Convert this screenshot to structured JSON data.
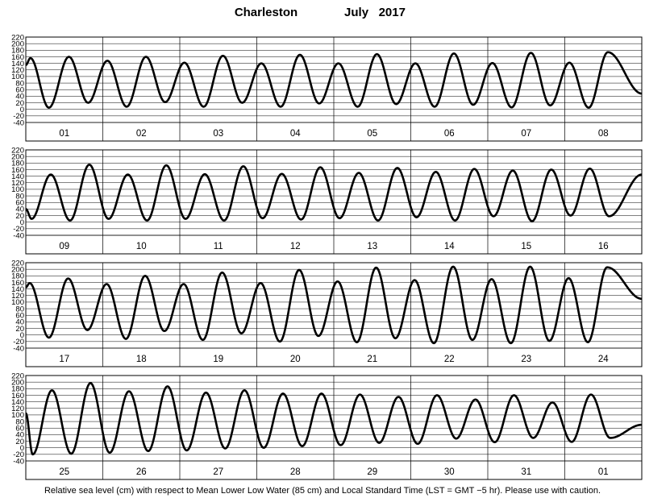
{
  "header": {
    "station": "Charleston",
    "period": "July   2017"
  },
  "footer": {
    "note": "Relative sea level (cm) with respect to Mean Lower Low Water (85 cm) and Local Standard Time (LST = GMT −5 hr). Please use with caution."
  },
  "chart_data": {
    "type": "line",
    "title": "Charleston          July   2017",
    "ylabel": "Relative sea level (cm)",
    "ylim": [
      -40,
      220
    ],
    "yticks": [
      -40,
      -20,
      0,
      20,
      40,
      60,
      80,
      100,
      120,
      140,
      160,
      180,
      200,
      220
    ],
    "grid": true,
    "panels": [
      {
        "days": [
          "01",
          "02",
          "03",
          "04",
          "05",
          "06",
          "07",
          "08"
        ],
        "start_value": 135,
        "extremes": [
          {
            "t": 0.12,
            "v": 156
          },
          {
            "t": 0.6,
            "v": 5
          },
          {
            "t": 1.12,
            "v": 160
          },
          {
            "t": 1.62,
            "v": 20
          },
          {
            "t": 2.12,
            "v": 148
          },
          {
            "t": 2.62,
            "v": 8
          },
          {
            "t": 3.12,
            "v": 160
          },
          {
            "t": 3.62,
            "v": 22
          },
          {
            "t": 4.12,
            "v": 142
          },
          {
            "t": 4.62,
            "v": 8
          },
          {
            "t": 5.12,
            "v": 163
          },
          {
            "t": 5.62,
            "v": 20
          },
          {
            "t": 6.12,
            "v": 140
          },
          {
            "t": 6.62,
            "v": 8
          },
          {
            "t": 7.12,
            "v": 166
          },
          {
            "t": 7.62,
            "v": 18
          },
          {
            "t": 8.12,
            "v": 140
          },
          {
            "t": 8.62,
            "v": 8
          },
          {
            "t": 9.12,
            "v": 168
          },
          {
            "t": 9.62,
            "v": 16
          },
          {
            "t": 10.12,
            "v": 140
          },
          {
            "t": 10.62,
            "v": 8
          },
          {
            "t": 11.12,
            "v": 170
          },
          {
            "t": 11.62,
            "v": 14
          },
          {
            "t": 12.12,
            "v": 141
          },
          {
            "t": 12.62,
            "v": 6
          },
          {
            "t": 13.12,
            "v": 172
          },
          {
            "t": 13.62,
            "v": 12
          },
          {
            "t": 14.12,
            "v": 142
          },
          {
            "t": 14.62,
            "v": 5
          },
          {
            "t": 15.12,
            "v": 174
          }
        ],
        "end_value": 48
      },
      {
        "days": [
          "09",
          "10",
          "11",
          "12",
          "13",
          "14",
          "15",
          "16"
        ],
        "start_value": 40,
        "extremes": [
          {
            "t": 0.15,
            "v": 10
          },
          {
            "t": 0.65,
            "v": 145
          },
          {
            "t": 1.15,
            "v": 5
          },
          {
            "t": 1.65,
            "v": 175
          },
          {
            "t": 2.15,
            "v": 10
          },
          {
            "t": 2.65,
            "v": 145
          },
          {
            "t": 3.15,
            "v": 5
          },
          {
            "t": 3.65,
            "v": 173
          },
          {
            "t": 4.15,
            "v": 10
          },
          {
            "t": 4.65,
            "v": 146
          },
          {
            "t": 5.15,
            "v": 5
          },
          {
            "t": 5.65,
            "v": 170
          },
          {
            "t": 6.15,
            "v": 12
          },
          {
            "t": 6.65,
            "v": 147
          },
          {
            "t": 7.15,
            "v": 8
          },
          {
            "t": 7.65,
            "v": 167
          },
          {
            "t": 8.15,
            "v": 12
          },
          {
            "t": 8.65,
            "v": 150
          },
          {
            "t": 9.15,
            "v": 5
          },
          {
            "t": 9.65,
            "v": 165
          },
          {
            "t": 10.15,
            "v": 15
          },
          {
            "t": 10.65,
            "v": 153
          },
          {
            "t": 11.15,
            "v": 5
          },
          {
            "t": 11.65,
            "v": 162
          },
          {
            "t": 12.15,
            "v": 18
          },
          {
            "t": 12.65,
            "v": 157
          },
          {
            "t": 13.15,
            "v": 3
          },
          {
            "t": 13.65,
            "v": 160
          },
          {
            "t": 14.15,
            "v": 20
          },
          {
            "t": 14.65,
            "v": 163
          },
          {
            "t": 15.15,
            "v": 18
          }
        ],
        "end_value": 145
      },
      {
        "days": [
          "17",
          "18",
          "19",
          "20",
          "21",
          "22",
          "23",
          "24"
        ],
        "start_value": 145,
        "extremes": [
          {
            "t": 0.1,
            "v": 158
          },
          {
            "t": 0.6,
            "v": -8
          },
          {
            "t": 1.1,
            "v": 172
          },
          {
            "t": 1.6,
            "v": 15
          },
          {
            "t": 2.1,
            "v": 155
          },
          {
            "t": 2.6,
            "v": -12
          },
          {
            "t": 3.1,
            "v": 180
          },
          {
            "t": 3.6,
            "v": 12
          },
          {
            "t": 4.1,
            "v": 155
          },
          {
            "t": 4.6,
            "v": -15
          },
          {
            "t": 5.1,
            "v": 190
          },
          {
            "t": 5.6,
            "v": 5
          },
          {
            "t": 6.1,
            "v": 158
          },
          {
            "t": 6.6,
            "v": -20
          },
          {
            "t": 7.1,
            "v": 198
          },
          {
            "t": 7.6,
            "v": -3
          },
          {
            "t": 8.1,
            "v": 163
          },
          {
            "t": 8.6,
            "v": -22
          },
          {
            "t": 9.1,
            "v": 205
          },
          {
            "t": 9.6,
            "v": -10
          },
          {
            "t": 10.1,
            "v": 167
          },
          {
            "t": 10.6,
            "v": -25
          },
          {
            "t": 11.1,
            "v": 208
          },
          {
            "t": 11.6,
            "v": -15
          },
          {
            "t": 12.1,
            "v": 170
          },
          {
            "t": 12.6,
            "v": -25
          },
          {
            "t": 13.1,
            "v": 208
          },
          {
            "t": 13.6,
            "v": -18
          },
          {
            "t": 14.1,
            "v": 173
          },
          {
            "t": 14.6,
            "v": -22
          },
          {
            "t": 15.1,
            "v": 206
          }
        ],
        "end_value": 110
      },
      {
        "days": [
          "25",
          "26",
          "27",
          "28",
          "29",
          "30",
          "31",
          "01"
        ],
        "start_value": 105,
        "extremes": [
          {
            "t": 0.18,
            "v": -20
          },
          {
            "t": 0.68,
            "v": 175
          },
          {
            "t": 1.18,
            "v": -18
          },
          {
            "t": 1.68,
            "v": 197
          },
          {
            "t": 2.18,
            "v": -15
          },
          {
            "t": 2.68,
            "v": 172
          },
          {
            "t": 3.18,
            "v": -10
          },
          {
            "t": 3.68,
            "v": 187
          },
          {
            "t": 4.18,
            "v": -8
          },
          {
            "t": 4.68,
            "v": 168
          },
          {
            "t": 5.18,
            "v": -2
          },
          {
            "t": 5.68,
            "v": 175
          },
          {
            "t": 6.18,
            "v": 0
          },
          {
            "t": 6.68,
            "v": 165
          },
          {
            "t": 7.18,
            "v": 5
          },
          {
            "t": 7.68,
            "v": 165
          },
          {
            "t": 8.18,
            "v": 8
          },
          {
            "t": 8.68,
            "v": 162
          },
          {
            "t": 9.18,
            "v": 15
          },
          {
            "t": 9.68,
            "v": 155
          },
          {
            "t": 10.18,
            "v": 12
          },
          {
            "t": 10.68,
            "v": 160
          },
          {
            "t": 11.18,
            "v": 28
          },
          {
            "t": 11.68,
            "v": 147
          },
          {
            "t": 12.18,
            "v": 17
          },
          {
            "t": 12.68,
            "v": 160
          },
          {
            "t": 13.18,
            "v": 30
          },
          {
            "t": 13.68,
            "v": 138
          },
          {
            "t": 14.18,
            "v": 18
          },
          {
            "t": 14.68,
            "v": 162
          },
          {
            "t": 15.18,
            "v": 30
          }
        ],
        "end_value": 70
      }
    ]
  }
}
